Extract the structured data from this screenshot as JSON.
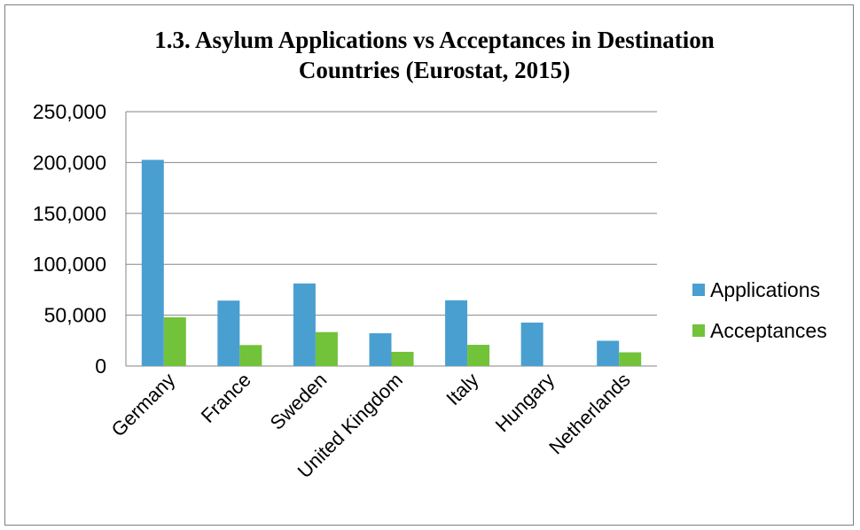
{
  "chart_data": {
    "type": "bar",
    "title": "1.3. Asylum Applications vs Acceptances in Destination Countries (Eurostat, 2015)",
    "title_lines": [
      "1.3. Asylum Applications vs Acceptances in Destination",
      "Countries (Eurostat, 2015)"
    ],
    "categories": [
      "Germany",
      "France",
      "Sweden",
      "United Kingdom",
      "Italy",
      "Hungary",
      "Netherlands"
    ],
    "series": [
      {
        "name": "Applications",
        "color": "#4a9fd1",
        "values": [
          202645,
          64310,
          81165,
          32210,
          64625,
          42700,
          24840
        ]
      },
      {
        "name": "Acceptances",
        "color": "#72c23a",
        "values": [
          47870,
          20630,
          33365,
          13970,
          20860,
          0,
          13475
        ]
      }
    ],
    "yticks": [
      "0",
      "50,000",
      "100,000",
      "150,000",
      "200,000",
      "250,000"
    ],
    "ylim": [
      0,
      250000
    ],
    "grid": true,
    "legend_position": "right"
  }
}
